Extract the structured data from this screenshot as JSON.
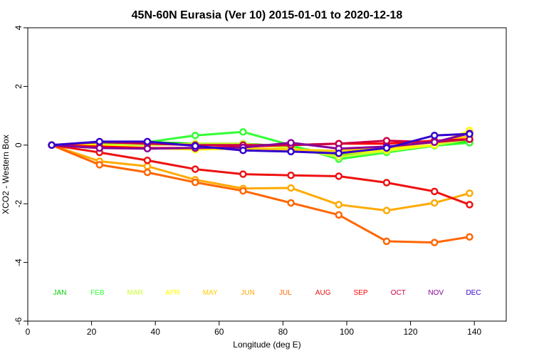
{
  "chart_data": {
    "type": "line",
    "title": "45N-60N Eurasia (Ver 10)   2015-01-01 to 2020-12-18",
    "xlabel": "Longitude (deg E)",
    "ylabel": "XCO2 - Western Box",
    "xlim": [
      0,
      150
    ],
    "ylim": [
      -6,
      4
    ],
    "xticks": [
      0,
      20,
      40,
      60,
      80,
      100,
      120,
      140
    ],
    "yticks": [
      -6,
      -4,
      -2,
      0,
      2,
      4
    ],
    "grid": false,
    "legend_placement": "bottom",
    "x": [
      7.5,
      22.5,
      37.5,
      52.5,
      67.5,
      82.5,
      97.5,
      112.5,
      127.5,
      138.5
    ],
    "series": [
      {
        "name": "JAN",
        "color": "#00d000",
        "values": [
          0.0,
          0.05,
          0.1,
          0.05,
          0.05,
          -0.05,
          -0.35,
          -0.2,
          0.0,
          0.15
        ]
      },
      {
        "name": "FEB",
        "color": "#33ff33",
        "values": [
          0.0,
          0.05,
          0.1,
          0.33,
          0.45,
          0.0,
          -0.48,
          -0.25,
          -0.02,
          0.08
        ]
      },
      {
        "name": "MAR",
        "color": "#ccff33",
        "values": [
          0.0,
          0.0,
          0.0,
          0.05,
          0.05,
          -0.1,
          -0.4,
          -0.2,
          0.0,
          0.2
        ]
      },
      {
        "name": "APR",
        "color": "#ffff00",
        "values": [
          0.0,
          0.0,
          -0.1,
          -0.15,
          -0.12,
          -0.18,
          -0.3,
          -0.15,
          0.0,
          0.5
        ]
      },
      {
        "name": "MAY",
        "color": "#ffcc00",
        "values": [
          0.0,
          -0.1,
          -0.12,
          -0.1,
          -0.1,
          -0.15,
          -0.2,
          -0.1,
          0.1,
          0.3
        ]
      },
      {
        "name": "JUN",
        "color": "#ffaa00",
        "values": [
          0.0,
          -0.55,
          -0.72,
          -1.18,
          -1.48,
          -1.46,
          -2.03,
          -2.23,
          -1.97,
          -1.64
        ]
      },
      {
        "name": "JUL",
        "color": "#ff6600",
        "values": [
          0.0,
          -0.67,
          -0.93,
          -1.27,
          -1.56,
          -1.97,
          -2.38,
          -3.28,
          -3.32,
          -3.13
        ]
      },
      {
        "name": "AUG",
        "color": "#ee1111",
        "values": [
          0.0,
          -0.25,
          -0.52,
          -0.82,
          -0.99,
          -1.03,
          -1.06,
          -1.28,
          -1.58,
          -2.03
        ]
      },
      {
        "name": "SEP",
        "color": "#ff0000",
        "values": [
          0.0,
          -0.05,
          -0.1,
          -0.1,
          -0.05,
          0.0,
          0.05,
          0.05,
          0.15,
          0.2
        ]
      },
      {
        "name": "OCT",
        "color": "#cc0044",
        "values": [
          0.0,
          0.1,
          0.05,
          0.0,
          0.0,
          0.0,
          0.05,
          0.15,
          0.1,
          0.2
        ]
      },
      {
        "name": "NOV",
        "color": "#880099",
        "values": [
          0.0,
          -0.1,
          -0.12,
          -0.1,
          -0.08,
          0.08,
          -0.12,
          -0.05,
          0.1,
          0.4
        ]
      },
      {
        "name": "DEC",
        "color": "#3300cc",
        "values": [
          0.0,
          0.12,
          0.12,
          -0.03,
          -0.18,
          -0.22,
          -0.28,
          -0.1,
          0.33,
          0.38
        ]
      }
    ]
  }
}
